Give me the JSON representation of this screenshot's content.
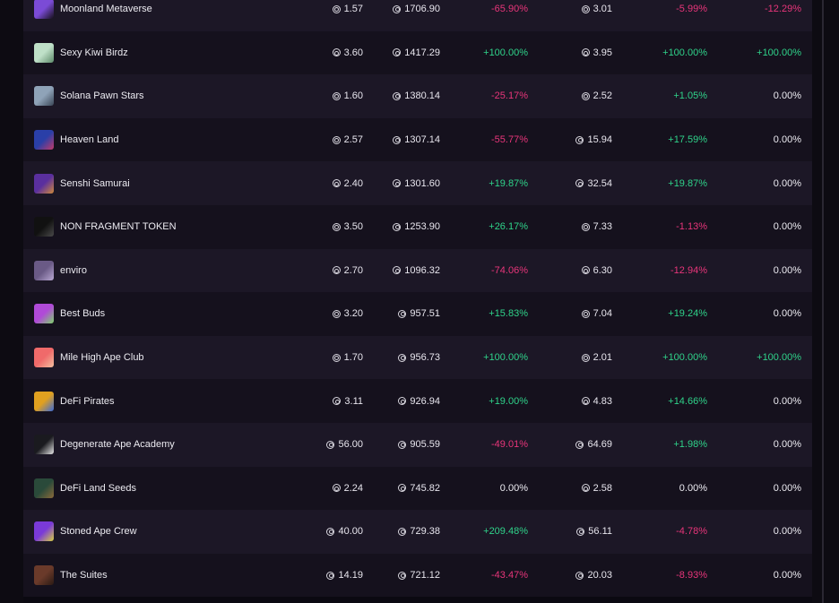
{
  "colors": {
    "positive": "#2fd38a",
    "negative": "#e8357a",
    "row_odd": "#1c1726",
    "row_even": "#15111d"
  },
  "rows": [
    {
      "name": "Moonland Metaverse",
      "floor": "1.57",
      "volume": "1706.90",
      "change1": "-65.90%",
      "avg": "3.01",
      "change2": "-5.99%",
      "change3": "-12.29%",
      "thumb": [
        "#7b4bd6",
        "#151019"
      ]
    },
    {
      "name": "Sexy Kiwi Birdz",
      "floor": "3.60",
      "volume": "1417.29",
      "change1": "+100.00%",
      "avg": "3.95",
      "change2": "+100.00%",
      "change3": "+100.00%",
      "thumb": [
        "#bfe0c8",
        "#5d8a6a"
      ]
    },
    {
      "name": "Solana Pawn Stars",
      "floor": "1.60",
      "volume": "1380.14",
      "change1": "-25.17%",
      "avg": "2.52",
      "change2": "+1.05%",
      "change3": "0.00%",
      "thumb": [
        "#8fa3b8",
        "#3a4656"
      ]
    },
    {
      "name": "Heaven Land",
      "floor": "2.57",
      "volume": "1307.14",
      "change1": "-55.77%",
      "avg": "15.94",
      "change2": "+17.59%",
      "change3": "0.00%",
      "thumb": [
        "#2a3fa8",
        "#c23b6a"
      ]
    },
    {
      "name": "Senshi Samurai",
      "floor": "2.40",
      "volume": "1301.60",
      "change1": "+19.87%",
      "avg": "32.54",
      "change2": "+19.87%",
      "change3": "0.00%",
      "thumb": [
        "#5a2f9e",
        "#d08a3a"
      ]
    },
    {
      "name": "NON FRAGMENT TOKEN",
      "floor": "3.50",
      "volume": "1253.90",
      "change1": "+26.17%",
      "avg": "7.33",
      "change2": "-1.13%",
      "change3": "0.00%",
      "thumb": [
        "#111111",
        "#4a4a4a"
      ]
    },
    {
      "name": "enviro",
      "floor": "2.70",
      "volume": "1096.32",
      "change1": "-74.06%",
      "avg": "6.30",
      "change2": "-12.94%",
      "change3": "0.00%",
      "thumb": [
        "#6a5a86",
        "#b9a8d3"
      ]
    },
    {
      "name": "Best Buds",
      "floor": "3.20",
      "volume": "957.51",
      "change1": "+15.83%",
      "avg": "7.04",
      "change2": "+19.24%",
      "change3": "0.00%",
      "thumb": [
        "#b04ad8",
        "#7ed36a"
      ]
    },
    {
      "name": "Mile High Ape Club",
      "floor": "1.70",
      "volume": "956.73",
      "change1": "+100.00%",
      "avg": "2.01",
      "change2": "+100.00%",
      "change3": "+100.00%",
      "thumb": [
        "#f06a6a",
        "#f2c0a0"
      ]
    },
    {
      "name": "DeFi Pirates",
      "floor": "3.11",
      "volume": "926.94",
      "change1": "+19.00%",
      "avg": "4.83",
      "change2": "+14.66%",
      "change3": "0.00%",
      "thumb": [
        "#e0a020",
        "#3a6ad8"
      ]
    },
    {
      "name": "Degenerate Ape Academy",
      "floor": "56.00",
      "volume": "905.59",
      "change1": "-49.01%",
      "avg": "64.69",
      "change2": "+1.98%",
      "change3": "0.00%",
      "thumb": [
        "#1a1a1f",
        "#e8e8e8"
      ]
    },
    {
      "name": "DeFi Land Seeds",
      "floor": "2.24",
      "volume": "745.82",
      "change1": "0.00%",
      "avg": "2.58",
      "change2": "0.00%",
      "change3": "0.00%",
      "thumb": [
        "#2a4a3a",
        "#8a6a3a"
      ]
    },
    {
      "name": "Stoned Ape Crew",
      "floor": "40.00",
      "volume": "729.38",
      "change1": "+209.48%",
      "avg": "56.11",
      "change2": "-4.78%",
      "change3": "0.00%",
      "thumb": [
        "#7a3ad8",
        "#d8d040"
      ]
    },
    {
      "name": "The Suites",
      "floor": "14.19",
      "volume": "721.12",
      "change1": "-43.47%",
      "avg": "20.03",
      "change2": "-8.93%",
      "change3": "0.00%",
      "thumb": [
        "#6a3a2a",
        "#2a1a14"
      ]
    }
  ]
}
